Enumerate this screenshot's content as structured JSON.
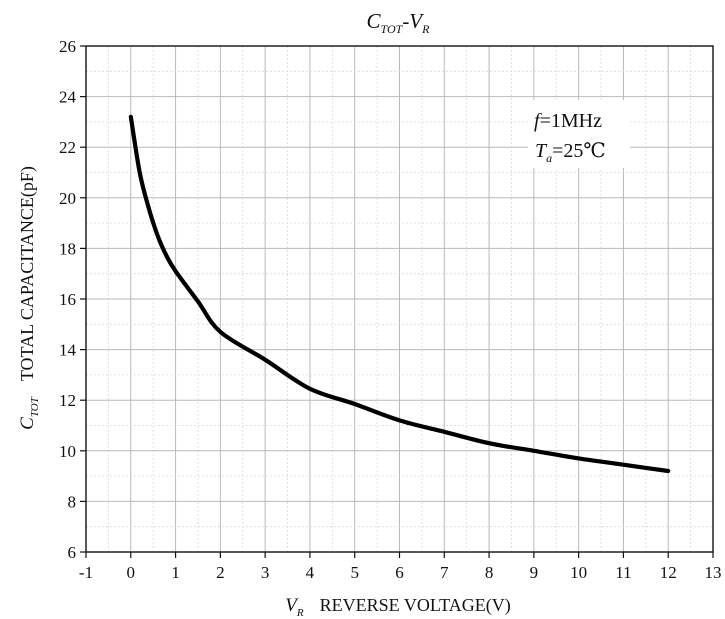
{
  "chart_data": {
    "type": "line",
    "title": {
      "main": "C",
      "main_sub": "TOT",
      "sep": "-V",
      "sep_sub": "R"
    },
    "xlabel": {
      "symbol": "V",
      "symbol_sub": "R",
      "text": "REVERSE VOLTAGE(V)"
    },
    "ylabel": {
      "symbol": "C",
      "symbol_sub": "TOT",
      "text": "TOTAL CAPACITANCE(pF)"
    },
    "xlim": [
      -1,
      13
    ],
    "ylim": [
      6,
      26
    ],
    "xticks": [
      -1,
      0,
      1,
      2,
      3,
      4,
      5,
      6,
      7,
      8,
      9,
      10,
      11,
      12,
      13
    ],
    "yticks": [
      6,
      8,
      10,
      12,
      14,
      16,
      18,
      20,
      22,
      24,
      26
    ],
    "grid": true,
    "annotation": {
      "line1_sym": "f",
      "line1_rest": "=1MHz",
      "line2_sym": "T",
      "line2_sub": "a",
      "line2_rest": "=25℃"
    },
    "series": [
      {
        "color": "#000000",
        "x": [
          0,
          0.2,
          0.4,
          0.6,
          0.8,
          1.0,
          1.5,
          2.0,
          3.0,
          4.0,
          5.0,
          6.0,
          7.0,
          8.0,
          9.0,
          10.0,
          11.0,
          12.0
        ],
        "y": [
          23.2,
          21.0,
          19.6,
          18.5,
          17.7,
          17.1,
          15.9,
          14.7,
          13.6,
          12.45,
          11.85,
          11.2,
          10.75,
          10.3,
          10.0,
          9.7,
          9.45,
          9.2
        ]
      }
    ]
  }
}
